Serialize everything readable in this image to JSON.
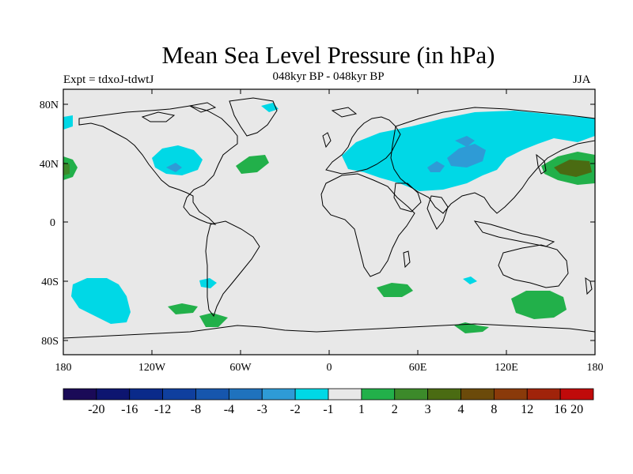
{
  "title": "Mean Sea Level Pressure (in hPa)",
  "subtitle": "048kyr BP - 048kyr BP",
  "left_label": "Expt = tdxoJ-tdwtJ",
  "right_label": "JJA",
  "lat_ticks": [
    "80N",
    "40N",
    "0",
    "40S",
    "80S"
  ],
  "lon_ticks": [
    "180",
    "120W",
    "60W",
    "0",
    "60E",
    "120E",
    "180"
  ],
  "colorbar": {
    "colors": [
      "#1a0a57",
      "#0d1570",
      "#0a2a8a",
      "#0f3f9e",
      "#1656ad",
      "#1f72bd",
      "#2e9bd6",
      "#00d8e6",
      "#e8e8e8",
      "#22b04a",
      "#3c8a2a",
      "#4a6b12",
      "#6b4a0a",
      "#8a3a0a",
      "#a0230a",
      "#c00a0a"
    ],
    "labels": [
      "-20",
      "-16",
      "-12",
      "-8",
      "-4",
      "-3",
      "-2",
      "-1",
      "1",
      "2",
      "3",
      "4",
      "8",
      "12",
      "16",
      "20"
    ]
  },
  "colors": {
    "land_sea_bg": "#e8e8e8",
    "neg_1_2": "#00d8e6",
    "neg_2_3": "#2e9bd6",
    "pos_1_2": "#22b04a",
    "pos_2_3": "#3c8a2a",
    "pos_3_4": "#4a6b12"
  }
}
